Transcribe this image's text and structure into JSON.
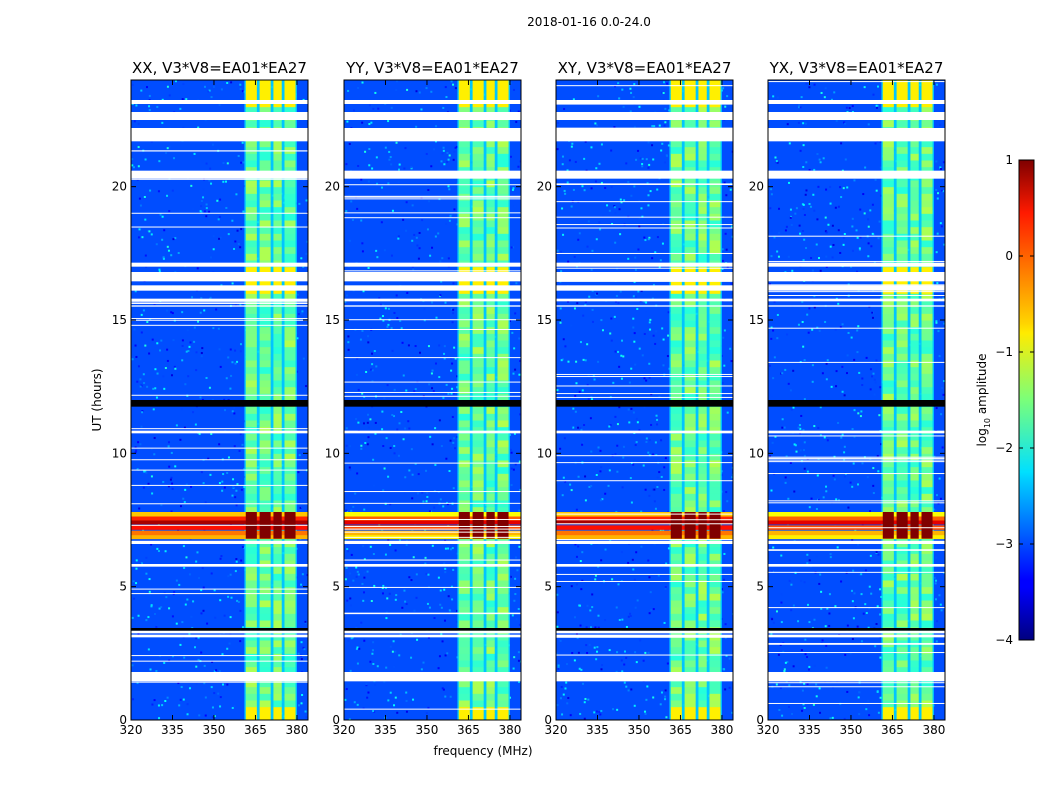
{
  "chart_data": {
    "type": "heatmap",
    "title": "2018-01-16 0.0-24.0",
    "xlabel": "frequency (MHz)",
    "ylabel": "UT (hours)",
    "xlim": [
      320,
      384
    ],
    "ylim": [
      0,
      24
    ],
    "xticks": [
      320,
      335,
      350,
      365,
      380
    ],
    "yticks": [
      0,
      5,
      10,
      15,
      20
    ],
    "panels": [
      {
        "title": "XX, V3*V8=EA01*EA27",
        "ylabel_shown": true
      },
      {
        "title": "YY, V3*V8=EA01*EA27",
        "ylabel_shown": false
      },
      {
        "title": "XY, V3*V8=EA01*EA27",
        "ylabel_shown": false
      },
      {
        "title": "YX, V3*V8=EA01*EA27",
        "ylabel_shown": false
      }
    ],
    "colorbar": {
      "label": "log10 amplitude",
      "label_base": "log",
      "label_sub": "10",
      "label_rest": " amplitude",
      "range": [
        -4,
        1
      ],
      "ticks": [
        "1",
        "0",
        "−1",
        "−2",
        "−3",
        "−4"
      ],
      "tick_values": [
        1,
        0,
        -1,
        -2,
        -3,
        -4
      ],
      "colormap": "jet"
    },
    "background_log_amplitude": -3.0,
    "rfi_band_mhz": [
      361,
      380
    ],
    "rfi_channels_mhz": [
      [
        361.5,
        365.5
      ],
      [
        366.5,
        370.5
      ],
      [
        371.5,
        374.5
      ],
      [
        375.5,
        379.5
      ]
    ],
    "flagged_hour_ranges": [
      [
        1.45,
        1.8
      ],
      [
        3.1,
        3.2
      ],
      [
        3.25,
        3.35
      ],
      [
        5.75,
        5.85
      ],
      [
        6.6,
        6.72
      ],
      [
        10.75,
        10.85
      ],
      [
        15.5,
        15.55
      ],
      [
        15.7,
        15.8
      ],
      [
        16.1,
        16.3
      ],
      [
        16.45,
        16.8
      ],
      [
        17.0,
        17.15
      ],
      [
        20.3,
        20.6
      ],
      [
        21.7,
        22.2
      ],
      [
        22.5,
        22.8
      ],
      [
        23.1,
        23.25
      ]
    ],
    "missing_hour_ranges": [
      [
        11.75,
        12.0
      ],
      [
        3.35,
        3.45
      ]
    ],
    "event_hours": [
      6.8,
      7.8
    ],
    "event_log_amplitude": 1.0
  }
}
